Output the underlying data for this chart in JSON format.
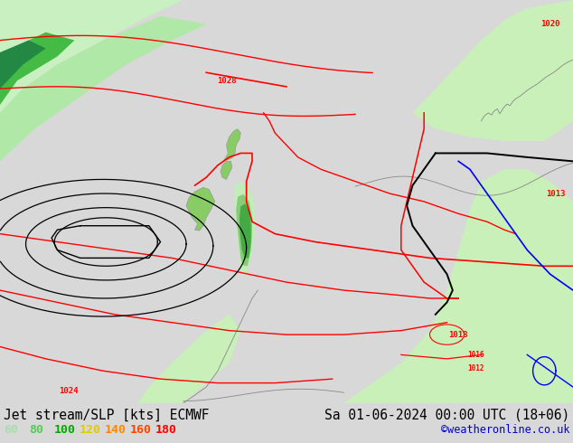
{
  "title_left": "Jet stream/SLP [kts] ECMWF",
  "title_right": "Sa 01-06-2024 00:00 UTC (18+06)",
  "credit": "©weatheronline.co.uk",
  "legend_values": [
    "60",
    "80",
    "100",
    "120",
    "140",
    "160",
    "180"
  ],
  "legend_colors": [
    "#aaddaa",
    "#55cc55",
    "#00aa00",
    "#ddcc00",
    "#ff8800",
    "#ff4400",
    "#ff0000"
  ],
  "bg_color": "#d8d8d8",
  "map_bg": "#e0e0e0",
  "figsize": [
    6.34,
    4.9
  ],
  "dpi": 100,
  "title_fontsize": 10.5,
  "legend_fontsize": 9.5,
  "credit_fontsize": 8.5,
  "bar_height": 0.09
}
